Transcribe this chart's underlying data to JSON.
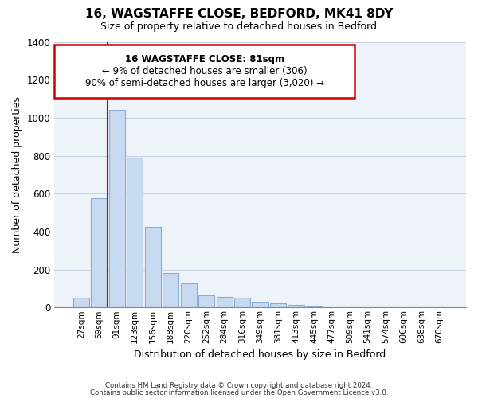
{
  "title": "16, WAGSTAFFE CLOSE, BEDFORD, MK41 8DY",
  "subtitle": "Size of property relative to detached houses in Bedford",
  "xlabel": "Distribution of detached houses by size in Bedford",
  "ylabel": "Number of detached properties",
  "bar_labels": [
    "27sqm",
    "59sqm",
    "91sqm",
    "123sqm",
    "156sqm",
    "188sqm",
    "220sqm",
    "252sqm",
    "284sqm",
    "316sqm",
    "349sqm",
    "381sqm",
    "413sqm",
    "445sqm",
    "477sqm",
    "509sqm",
    "541sqm",
    "574sqm",
    "606sqm",
    "638sqm",
    "670sqm"
  ],
  "bar_heights": [
    50,
    575,
    1040,
    790,
    425,
    180,
    125,
    65,
    55,
    50,
    25,
    20,
    15,
    5,
    3,
    0,
    0,
    0,
    0,
    0,
    0
  ],
  "bar_color": "#c8daf0",
  "bar_edge_color": "#8aadd4",
  "vline_x": 1.5,
  "vline_color": "#cc0000",
  "ylim": [
    0,
    1400
  ],
  "yticks": [
    0,
    200,
    400,
    600,
    800,
    1000,
    1200,
    1400
  ],
  "annotation_line1": "16 WAGSTAFFE CLOSE: 81sqm",
  "annotation_line2": "← 9% of detached houses are smaller (306)",
  "annotation_line3": "90% of semi-detached houses are larger (3,020) →",
  "footer_line1": "Contains HM Land Registry data © Crown copyright and database right 2024.",
  "footer_line2": "Contains public sector information licensed under the Open Government Licence v3.0.",
  "background_color": "#ffffff",
  "plot_bg_color": "#eef3fa",
  "grid_color": "#c8d4e4"
}
